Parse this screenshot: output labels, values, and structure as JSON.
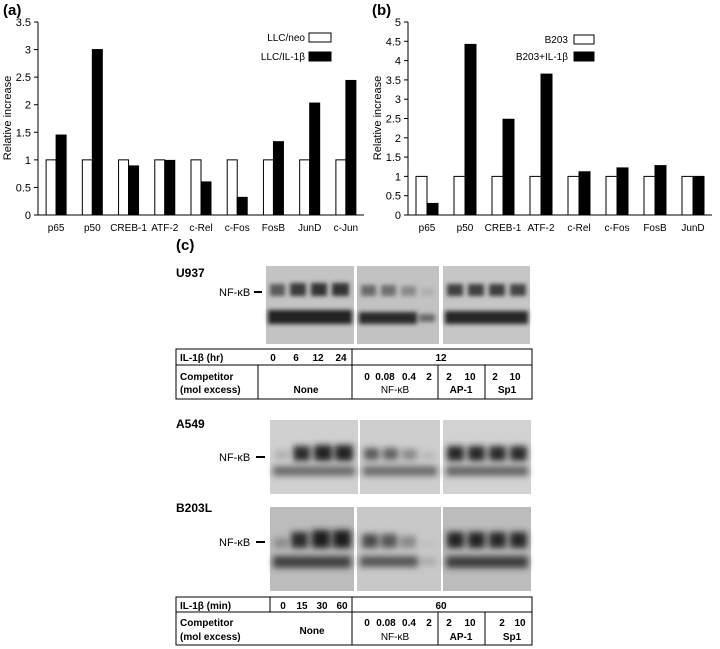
{
  "panels": {
    "a": "(a)",
    "b": "(b)",
    "c": "(c)"
  },
  "chart_data": [
    {
      "type": "bar",
      "panel": "(a)",
      "ylabel": "Relative increase",
      "ylim": [
        0,
        3.5
      ],
      "yticks": [
        "0",
        "0.5",
        "1",
        "1.5",
        "2",
        "2.5",
        "3",
        "3.5"
      ],
      "categories": [
        "p65",
        "p50",
        "CREB-1",
        "ATF-2",
        "c-Rel",
        "c-Fos",
        "FosB",
        "JunD",
        "c-Jun"
      ],
      "legend_position": "top-right",
      "series": [
        {
          "name": "LLC/neo",
          "color": "#ffffff",
          "values": [
            1,
            1,
            1,
            1,
            1,
            1,
            1,
            1,
            1
          ]
        },
        {
          "name": "LLC/IL-1β",
          "color": "#000000",
          "values": [
            1.45,
            3.0,
            0.89,
            0.99,
            0.6,
            0.32,
            1.33,
            2.03,
            2.44
          ]
        }
      ]
    },
    {
      "type": "bar",
      "panel": "(b)",
      "ylabel": "Relative increase",
      "ylim": [
        0,
        5
      ],
      "yticks": [
        "0",
        "0.5",
        "1",
        "1.5",
        "2",
        "2.5",
        "3",
        "3.5",
        "4",
        "4.5",
        "5"
      ],
      "categories": [
        "p65",
        "p50",
        "CREB-1",
        "ATF-2",
        "c-Rel",
        "c-Fos",
        "FosB",
        "JunD"
      ],
      "legend_position": "top-right",
      "series": [
        {
          "name": "B203",
          "color": "#ffffff",
          "values": [
            1,
            1,
            1,
            1,
            1,
            1,
            1,
            1
          ]
        },
        {
          "name": "B203+IL-1β",
          "color": "#000000",
          "values": [
            0.3,
            4.42,
            2.48,
            3.65,
            1.12,
            1.22,
            1.28,
            1.0
          ]
        }
      ]
    }
  ],
  "gels": {
    "top": {
      "cell_line": "U937",
      "band_label": "NF-κB",
      "table": {
        "row1_label": "IL-1β (hr)",
        "row1_values": [
          "0",
          "6",
          "12",
          "24"
        ],
        "row1_shared": "12",
        "row2_label_line1": "Competitor",
        "row2_label_line2": "(mol excess)",
        "none_label": "None",
        "nfkb_values": [
          "0",
          "0.08",
          "0.4",
          "2"
        ],
        "nfkb_label": "NF-κB",
        "ap1_values": [
          "2",
          "10"
        ],
        "ap1_label": "AP-1",
        "sp1_values": [
          "2",
          "10"
        ],
        "sp1_label": "Sp1"
      }
    },
    "middle": {
      "cell_line": "A549",
      "band_label": "NF-κB"
    },
    "bottom": {
      "cell_line": "B203L",
      "band_label": "NF-κB",
      "table": {
        "row1_label": "IL-1β (min)",
        "row1_values": [
          "0",
          "15",
          "30",
          "60"
        ],
        "row1_shared": "60",
        "row2_label_line1": "Competitor",
        "row2_label_line2": "(mol excess)",
        "none_label": "None",
        "nfkb_values": [
          "0",
          "0.08",
          "0.4",
          "2"
        ],
        "nfkb_label": "NF-κB",
        "ap1_values": [
          "2",
          "10"
        ],
        "ap1_label": "AP-1",
        "sp1_values": [
          "2",
          "10"
        ],
        "sp1_label": "Sp1"
      }
    }
  }
}
